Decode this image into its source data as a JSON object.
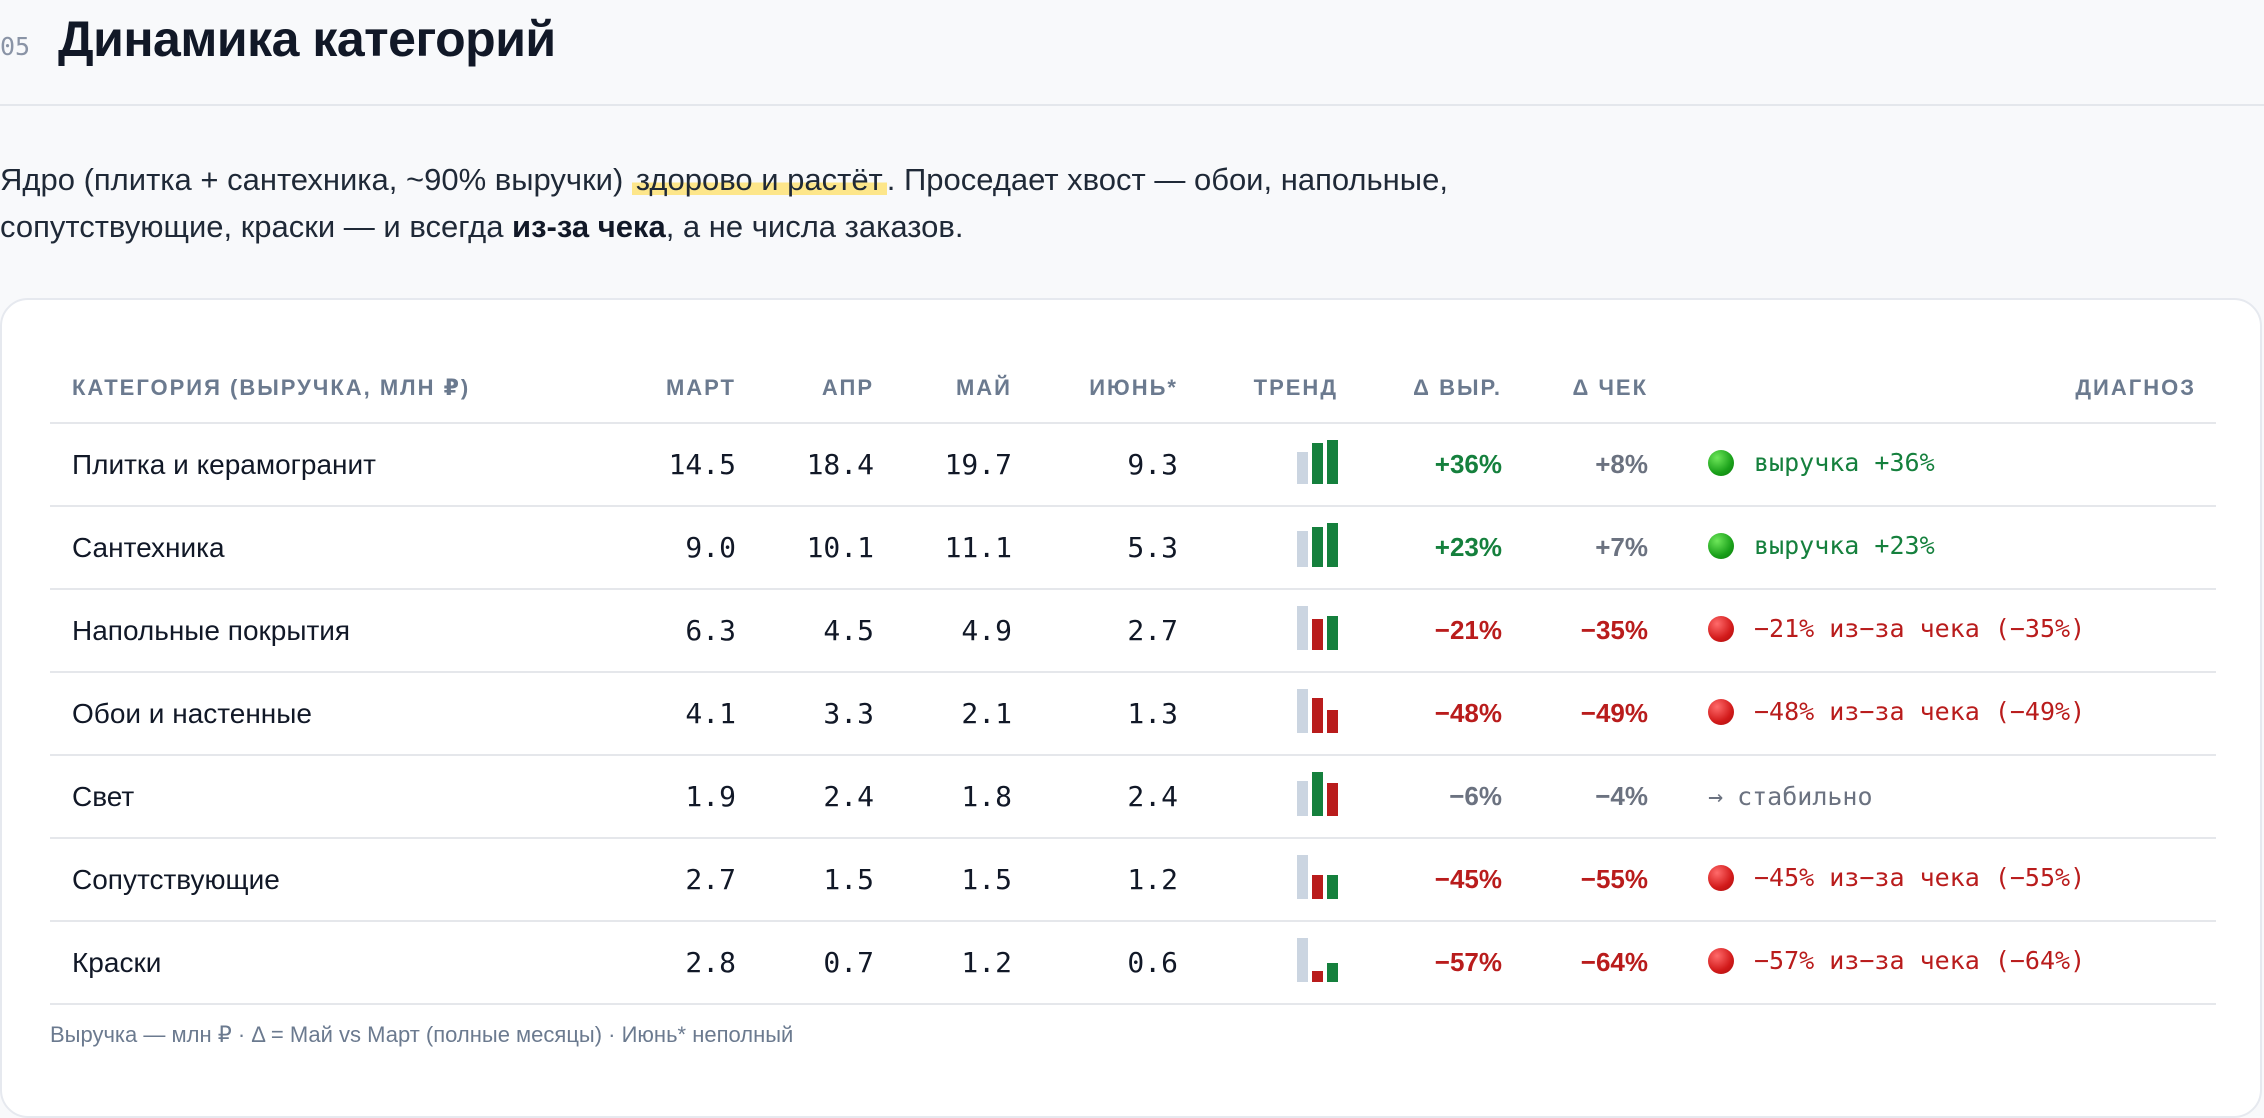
{
  "section": {
    "number": "05",
    "title": "Динамика категорий"
  },
  "lead": {
    "part1": "Ядро (плитка + сантехника, ~90% выручки) ",
    "highlight": "здорово и растёт",
    "part2": ". Проседает хвост — обои, напольные, сопутствующие, краски — и всегда ",
    "bold": "из-за чека",
    "part3": ", а не числа заказов."
  },
  "table": {
    "headers": {
      "category": "КАТЕГОРИЯ (ВЫРУЧКА, МЛН ₽)",
      "mar": "МАРТ",
      "apr": "АПР",
      "may": "МАЙ",
      "jun": "ИЮНЬ*",
      "trend": "ТРЕНД",
      "d_rev": "Δ ВЫР.",
      "d_check": "Δ ЧЕК",
      "diagnosis": "ДИАГНОЗ"
    },
    "rows": [
      {
        "name": "Плитка и керамогранит",
        "mar": "14.5",
        "apr": "18.4",
        "may": "19.7",
        "jun": "9.3",
        "spark": [
          14.5,
          18.4,
          19.7
        ],
        "d_rev": "+36%",
        "d_rev_tone": "pos",
        "d_check": "+8%",
        "d_check_tone": "neu",
        "diag_icon": "green-dot-icon",
        "diag_text": "выручка +36%",
        "diag_tone": "pos"
      },
      {
        "name": "Сантехника",
        "mar": "9.0",
        "apr": "10.1",
        "may": "11.1",
        "jun": "5.3",
        "spark": [
          9.0,
          10.1,
          11.1
        ],
        "d_rev": "+23%",
        "d_rev_tone": "pos",
        "d_check": "+7%",
        "d_check_tone": "neu",
        "diag_icon": "green-dot-icon",
        "diag_text": "выручка +23%",
        "diag_tone": "pos"
      },
      {
        "name": "Напольные покрытия",
        "mar": "6.3",
        "apr": "4.5",
        "may": "4.9",
        "jun": "2.7",
        "spark": [
          6.3,
          4.5,
          4.9
        ],
        "d_rev": "−21%",
        "d_rev_tone": "neg",
        "d_check": "−35%",
        "d_check_tone": "neg",
        "diag_icon": "red-dot-icon",
        "diag_text": "−21% из−за чека (−35%)",
        "diag_tone": "neg"
      },
      {
        "name": "Обои и настенные",
        "mar": "4.1",
        "apr": "3.3",
        "may": "2.1",
        "jun": "1.3",
        "spark": [
          4.1,
          3.3,
          2.1
        ],
        "d_rev": "−48%",
        "d_rev_tone": "neg",
        "d_check": "−49%",
        "d_check_tone": "neg",
        "diag_icon": "red-dot-icon",
        "diag_text": "−48% из−за чека (−49%)",
        "diag_tone": "neg"
      },
      {
        "name": "Свет",
        "mar": "1.9",
        "apr": "2.4",
        "may": "1.8",
        "jun": "2.4",
        "spark": [
          1.9,
          2.4,
          1.8
        ],
        "d_rev": "−6%",
        "d_rev_tone": "neu",
        "d_check": "−4%",
        "d_check_tone": "neu",
        "diag_icon": "arrow-right-icon",
        "diag_text": "стабильно",
        "diag_tone": "neu"
      },
      {
        "name": "Сопутствующие",
        "mar": "2.7",
        "apr": "1.5",
        "may": "1.5",
        "jun": "1.2",
        "spark": [
          2.7,
          1.5,
          1.5
        ],
        "d_rev": "−45%",
        "d_rev_tone": "neg",
        "d_check": "−55%",
        "d_check_tone": "neg",
        "diag_icon": "red-dot-icon",
        "diag_text": "−45% из−за чека (−55%)",
        "diag_tone": "neg"
      },
      {
        "name": "Краски",
        "mar": "2.8",
        "apr": "0.7",
        "may": "1.2",
        "jun": "0.6",
        "spark": [
          2.8,
          0.7,
          1.2
        ],
        "d_rev": "−57%",
        "d_rev_tone": "neg",
        "d_check": "−64%",
        "d_check_tone": "neg",
        "diag_icon": "red-dot-icon",
        "diag_text": "−57% из−за чека (−64%)",
        "diag_tone": "neg"
      }
    ],
    "footnote": "Выручка — млн ₽ · Δ = Май vs Март (полные месяцы) · Июнь* неполный"
  },
  "colors": {
    "positive": "#15803d",
    "negative": "#b91c1c",
    "neutral": "#6b7280",
    "spark_base": "#cbd5e1",
    "spark_up": "#15803d",
    "spark_down": "#b91c1c",
    "highlight": "#fde68a"
  }
}
